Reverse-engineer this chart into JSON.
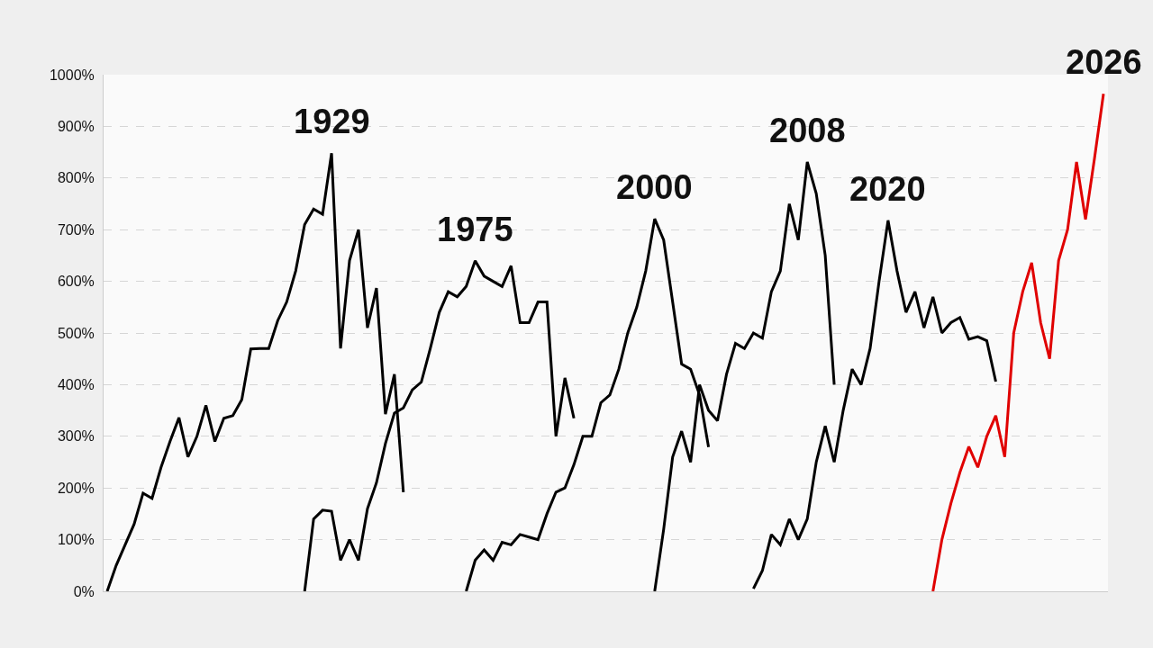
{
  "chart_data": {
    "type": "line",
    "categories": [
      null,
      null,
      null,
      null,
      null,
      null,
      null,
      null,
      null,
      null,
      null,
      null,
      null,
      null,
      null,
      null,
      null,
      null,
      null,
      null,
      null,
      null,
      null,
      null,
      null,
      null,
      null,
      null,
      null,
      null,
      null,
      null,
      null,
      null,
      null,
      null,
      null,
      null,
      null,
      null,
      null,
      null,
      null,
      null,
      null,
      null,
      null,
      null,
      null,
      null,
      null,
      null,
      null,
      null,
      null,
      null,
      null,
      null,
      null,
      null,
      null,
      null,
      null,
      null,
      null,
      null,
      null,
      null,
      null,
      null,
      null,
      null,
      null,
      null,
      null,
      null,
      null,
      null,
      null,
      null,
      null,
      null,
      null,
      null,
      null,
      null,
      null,
      null,
      null,
      null,
      null,
      null,
      null,
      null,
      null,
      null,
      null,
      null,
      null,
      null,
      null,
      null,
      null,
      null,
      null,
      null,
      null,
      null,
      null,
      null,
      null,
      null
    ],
    "series": [
      {
        "name": "1929",
        "color": "#000000",
        "values": [
          0,
          50,
          90,
          130,
          190,
          180,
          240,
          290,
          336,
          260,
          300,
          360,
          290,
          335,
          340,
          371,
          469,
          470,
          470,
          524,
          560,
          620,
          710,
          740,
          730,
          848,
          470,
          640,
          700,
          510,
          587,
          343,
          420,
          192,
          null,
          null,
          null,
          null,
          null,
          null,
          null,
          null,
          null,
          null,
          null,
          null,
          null,
          null,
          null,
          null,
          null,
          null,
          null,
          null,
          null,
          null,
          null,
          null,
          null,
          null,
          null,
          null,
          null,
          null,
          null,
          null,
          null,
          null,
          null,
          null,
          null,
          null,
          null,
          null,
          null,
          null,
          null,
          null,
          null,
          null,
          null,
          null,
          null,
          null,
          null,
          null,
          null,
          null,
          null,
          null,
          null,
          null,
          null,
          null,
          null,
          null,
          null,
          null,
          null,
          null,
          null,
          null,
          null,
          null,
          null,
          null,
          null,
          null,
          null,
          null,
          null,
          null
        ]
      },
      {
        "name": "1975",
        "color": "#000000",
        "values": [
          null,
          null,
          null,
          null,
          null,
          null,
          null,
          null,
          null,
          null,
          null,
          null,
          null,
          null,
          null,
          null,
          null,
          null,
          null,
          null,
          null,
          null,
          0,
          140,
          157,
          155,
          60,
          100,
          60,
          160,
          210,
          286,
          345,
          355,
          390,
          405,
          470,
          540,
          580,
          570,
          590,
          640,
          610,
          600,
          590,
          630,
          520,
          520,
          560,
          560,
          300,
          413,
          335,
          null,
          null,
          null,
          null,
          null,
          null,
          null,
          null,
          null,
          null,
          null,
          null,
          null,
          null,
          null,
          null,
          null,
          null,
          null,
          null,
          null,
          null,
          null,
          null,
          null,
          null,
          null,
          null,
          null,
          null,
          null,
          null,
          null,
          null,
          null,
          null,
          null,
          null,
          null,
          null,
          null,
          null,
          null,
          null,
          null,
          null,
          null,
          null,
          null,
          null,
          null,
          null,
          null,
          null,
          null,
          null,
          null,
          null,
          null
        ]
      },
      {
        "name": "2000",
        "color": "#000000",
        "values": [
          null,
          null,
          null,
          null,
          null,
          null,
          null,
          null,
          null,
          null,
          null,
          null,
          null,
          null,
          null,
          null,
          null,
          null,
          null,
          null,
          null,
          null,
          null,
          null,
          null,
          null,
          null,
          null,
          null,
          null,
          null,
          null,
          null,
          null,
          null,
          null,
          null,
          null,
          null,
          null,
          0,
          60,
          80,
          60,
          95,
          90,
          110,
          105,
          100,
          150,
          192,
          200,
          245,
          300,
          300,
          365,
          380,
          430,
          500,
          550,
          620,
          721,
          680,
          560,
          440,
          430,
          380,
          279,
          null,
          null,
          null,
          null,
          null,
          null,
          null,
          null,
          null,
          null,
          null,
          null,
          null,
          null,
          null,
          null,
          null,
          null,
          null,
          null,
          null,
          null,
          null,
          null,
          null,
          null,
          null,
          null,
          null,
          null,
          null,
          null,
          null,
          null,
          null,
          null,
          null,
          null,
          null,
          null,
          null,
          null,
          null,
          null
        ]
      },
      {
        "name": "2008",
        "color": "#000000",
        "values": [
          null,
          null,
          null,
          null,
          null,
          null,
          null,
          null,
          null,
          null,
          null,
          null,
          null,
          null,
          null,
          null,
          null,
          null,
          null,
          null,
          null,
          null,
          null,
          null,
          null,
          null,
          null,
          null,
          null,
          null,
          null,
          null,
          null,
          null,
          null,
          null,
          null,
          null,
          null,
          null,
          null,
          null,
          null,
          null,
          null,
          null,
          null,
          null,
          null,
          null,
          null,
          null,
          null,
          null,
          null,
          null,
          null,
          null,
          null,
          null,
          null,
          0,
          120,
          260,
          310,
          250,
          400,
          350,
          330,
          420,
          480,
          470,
          500,
          490,
          580,
          620,
          750,
          680,
          831,
          770,
          650,
          400,
          null,
          null,
          null,
          null,
          null,
          null,
          null,
          null,
          null,
          null,
          null,
          null,
          null,
          null,
          null,
          null,
          null,
          null,
          null,
          null,
          null,
          null,
          null,
          null,
          null,
          null,
          null,
          null,
          null,
          null
        ]
      },
      {
        "name": "2020",
        "color": "#000000",
        "values": [
          null,
          null,
          null,
          null,
          null,
          null,
          null,
          null,
          null,
          null,
          null,
          null,
          null,
          null,
          null,
          null,
          null,
          null,
          null,
          null,
          null,
          null,
          null,
          null,
          null,
          null,
          null,
          null,
          null,
          null,
          null,
          null,
          null,
          null,
          null,
          null,
          null,
          null,
          null,
          null,
          null,
          null,
          null,
          null,
          null,
          null,
          null,
          null,
          null,
          null,
          null,
          null,
          null,
          null,
          null,
          null,
          null,
          null,
          null,
          null,
          null,
          null,
          null,
          null,
          null,
          null,
          null,
          null,
          null,
          null,
          null,
          null,
          5,
          40,
          110,
          90,
          140,
          100,
          140,
          250,
          320,
          250,
          350,
          430,
          400,
          470,
          600,
          718,
          620,
          540,
          580,
          510,
          570,
          500,
          520,
          530,
          488,
          493,
          485,
          406,
          null,
          null,
          null,
          null,
          null,
          null,
          null,
          null,
          null,
          null,
          null,
          null
        ]
      },
      {
        "name": "2026",
        "color": "#e00000",
        "values": [
          null,
          null,
          null,
          null,
          null,
          null,
          null,
          null,
          null,
          null,
          null,
          null,
          null,
          null,
          null,
          null,
          null,
          null,
          null,
          null,
          null,
          null,
          null,
          null,
          null,
          null,
          null,
          null,
          null,
          null,
          null,
          null,
          null,
          null,
          null,
          null,
          null,
          null,
          null,
          null,
          null,
          null,
          null,
          null,
          null,
          null,
          null,
          null,
          null,
          null,
          null,
          null,
          null,
          null,
          null,
          null,
          null,
          null,
          null,
          null,
          null,
          null,
          null,
          null,
          null,
          null,
          null,
          null,
          null,
          null,
          null,
          null,
          null,
          null,
          null,
          null,
          null,
          null,
          null,
          null,
          null,
          null,
          null,
          null,
          null,
          null,
          null,
          null,
          null,
          null,
          null,
          null,
          0,
          100,
          170,
          230,
          280,
          240,
          300,
          340,
          260,
          500,
          580,
          636,
          520,
          450,
          640,
          700,
          831,
          720,
          838,
          963
        ]
      }
    ],
    "ylim": [
      0,
      1000
    ],
    "yticks": [
      {
        "value": 0,
        "label": "0%"
      },
      {
        "value": 100,
        "label": "100%"
      },
      {
        "value": 200,
        "label": "200%"
      },
      {
        "value": 300,
        "label": "300%"
      },
      {
        "value": 400,
        "label": "400%"
      },
      {
        "value": 500,
        "label": "500%"
      },
      {
        "value": 600,
        "label": "600%"
      },
      {
        "value": 700,
        "label": "700%"
      },
      {
        "value": 800,
        "label": "800%"
      },
      {
        "value": 900,
        "label": "900%"
      },
      {
        "value": 1000,
        "label": "1000%"
      }
    ],
    "grid": "y",
    "legend": false,
    "marker": "none",
    "line_style": "solid",
    "tick_labels": "y"
  }
}
